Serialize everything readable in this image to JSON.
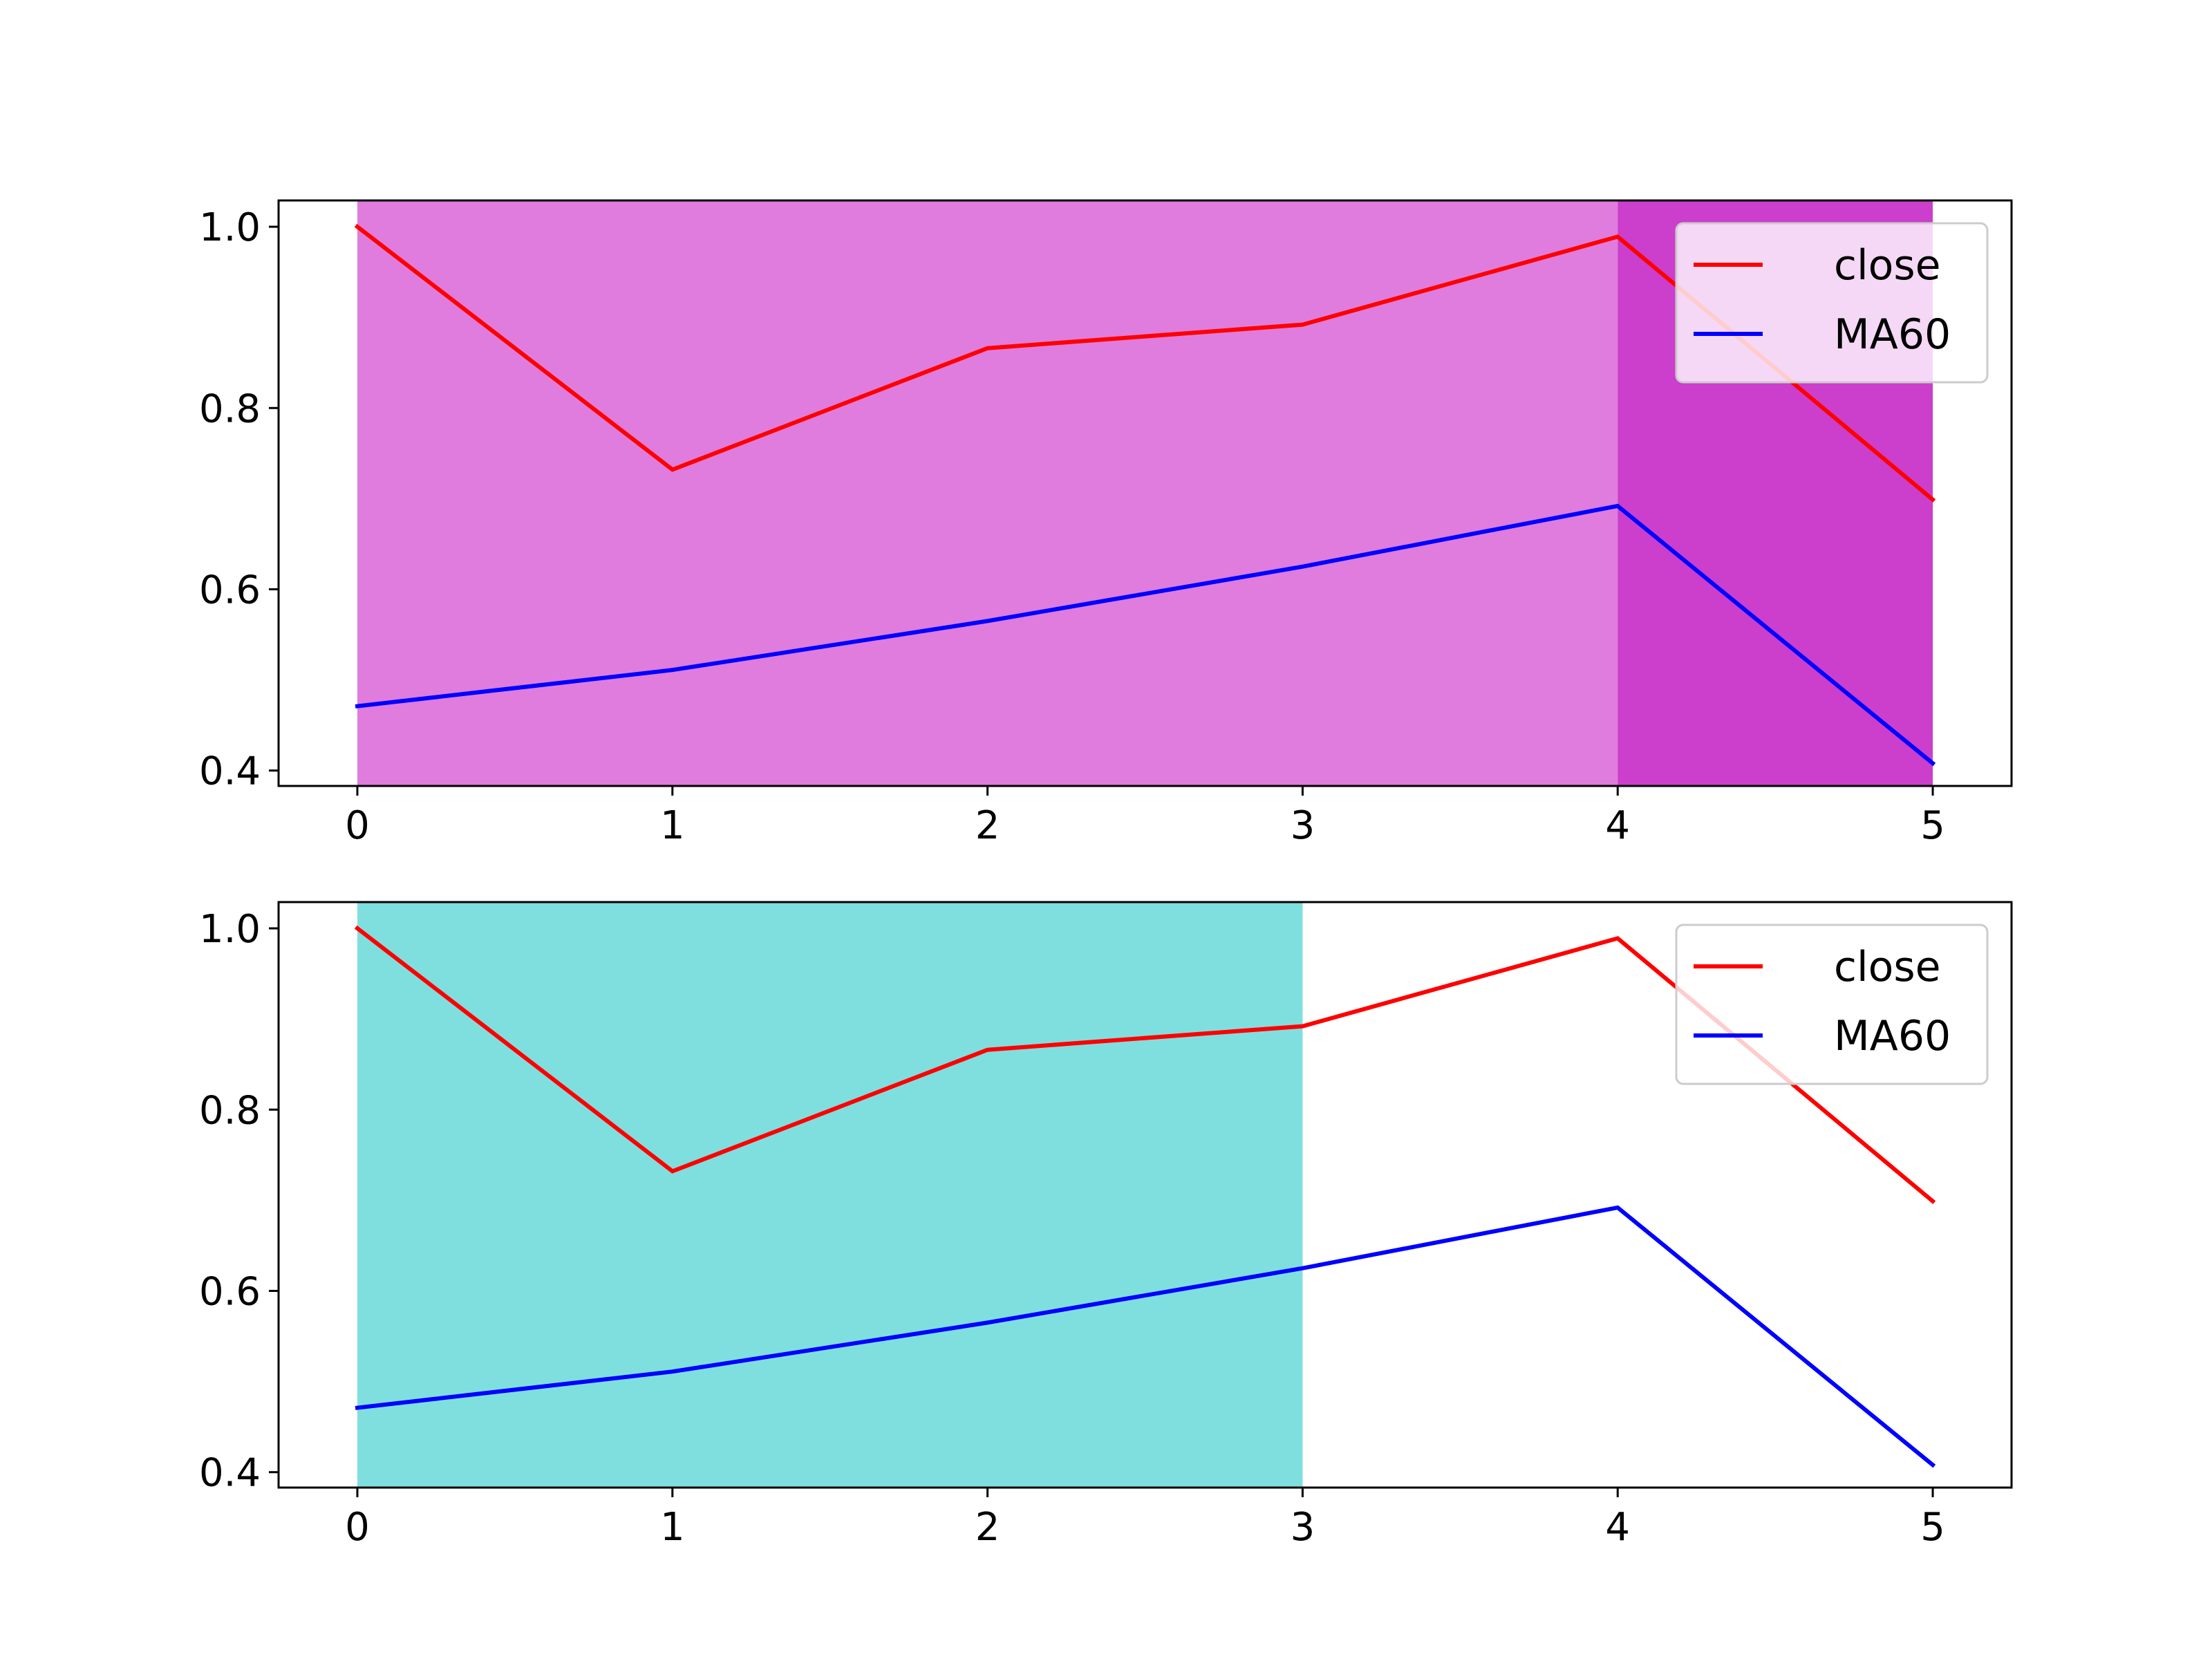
{
  "chart_data": [
    {
      "type": "line",
      "title": "",
      "xlabel": "",
      "ylabel": "",
      "x": [
        0,
        1,
        2,
        3,
        4,
        5
      ],
      "xlim": [
        -0.25,
        5.25
      ],
      "ylim": [
        0.383,
        1.029
      ],
      "xticks": [
        "0",
        "1",
        "2",
        "3",
        "4",
        "5"
      ],
      "yticks": [
        "0.4",
        "0.6",
        "0.8",
        "1.0"
      ],
      "grid": false,
      "legend_position": "upper right",
      "series": [
        {
          "name": "close",
          "color": "#ff0000",
          "values": [
            1.0,
            0.732,
            0.866,
            0.892,
            0.989,
            0.699
          ]
        },
        {
          "name": "MA60",
          "color": "#0000ff",
          "values": [
            0.471,
            0.511,
            0.565,
            0.625,
            0.692,
            0.408
          ]
        }
      ],
      "shaded_spans": [
        {
          "x_start": 0,
          "x_end": 4,
          "color": "#df7cdd"
        },
        {
          "x_start": 4,
          "x_end": 5,
          "color": "#cc3ecc"
        }
      ]
    },
    {
      "type": "line",
      "title": "",
      "xlabel": "",
      "ylabel": "",
      "x": [
        0,
        1,
        2,
        3,
        4,
        5
      ],
      "xlim": [
        -0.25,
        5.25
      ],
      "ylim": [
        0.383,
        1.029
      ],
      "xticks": [
        "0",
        "1",
        "2",
        "3",
        "4",
        "5"
      ],
      "yticks": [
        "0.4",
        "0.6",
        "0.8",
        "1.0"
      ],
      "grid": false,
      "legend_position": "upper right",
      "series": [
        {
          "name": "close",
          "color": "#ff0000",
          "values": [
            1.0,
            0.732,
            0.866,
            0.892,
            0.989,
            0.699
          ]
        },
        {
          "name": "MA60",
          "color": "#0000ff",
          "values": [
            0.471,
            0.511,
            0.565,
            0.625,
            0.692,
            0.408
          ]
        }
      ],
      "shaded_spans": [
        {
          "x_start": 0,
          "x_end": 3,
          "color": "#7fdfdf"
        }
      ]
    }
  ]
}
